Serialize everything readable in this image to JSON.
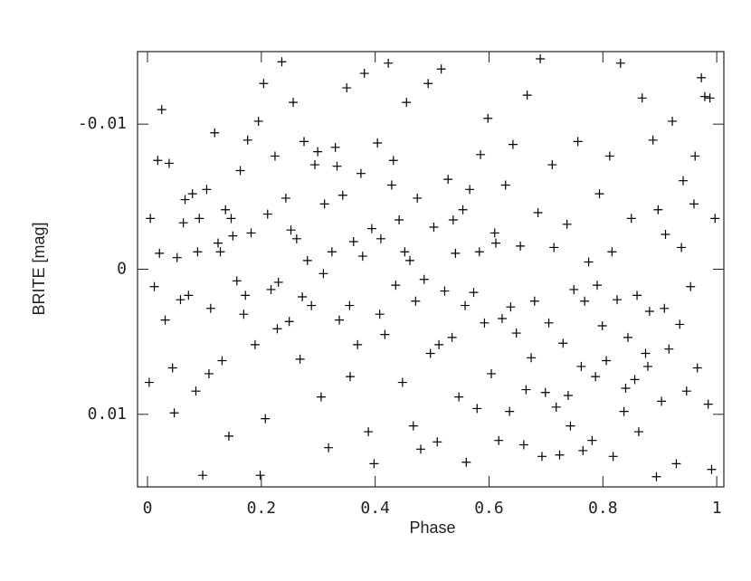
{
  "chart_data": {
    "type": "scatter",
    "xlabel": "Phase",
    "ylabel": "BRITE [mag]",
    "xlim": [
      -0.0175,
      1.0125
    ],
    "ylim": [
      0.015,
      -0.015
    ],
    "xticks": [
      0,
      0.2,
      0.4,
      0.6,
      0.8,
      1
    ],
    "yticks": [
      -0.01,
      0,
      0.01
    ],
    "color": "#000000",
    "marker": "+",
    "x": [
      0.005,
      0.012,
      0.018,
      0.025,
      0.031,
      0.038,
      0.044,
      0.052,
      0.058,
      0.066,
      0.072,
      0.079,
      0.085,
      0.091,
      0.097,
      0.003,
      0.021,
      0.047,
      0.063,
      0.088,
      0.104,
      0.111,
      0.118,
      0.124,
      0.131,
      0.137,
      0.143,
      0.15,
      0.157,
      0.163,
      0.169,
      0.176,
      0.182,
      0.189,
      0.195,
      0.108,
      0.128,
      0.147,
      0.172,
      0.198,
      0.204,
      0.211,
      0.217,
      0.224,
      0.23,
      0.236,
      0.243,
      0.249,
      0.256,
      0.262,
      0.268,
      0.275,
      0.281,
      0.288,
      0.294,
      0.207,
      0.228,
      0.252,
      0.272,
      0.299,
      0.305,
      0.311,
      0.318,
      0.324,
      0.33,
      0.337,
      0.343,
      0.35,
      0.356,
      0.362,
      0.369,
      0.375,
      0.381,
      0.388,
      0.394,
      0.309,
      0.333,
      0.355,
      0.378,
      0.398,
      0.404,
      0.41,
      0.417,
      0.423,
      0.429,
      0.436,
      0.442,
      0.448,
      0.455,
      0.461,
      0.467,
      0.474,
      0.48,
      0.486,
      0.493,
      0.408,
      0.432,
      0.452,
      0.471,
      0.497,
      0.503,
      0.509,
      0.516,
      0.522,
      0.528,
      0.535,
      0.541,
      0.547,
      0.554,
      0.56,
      0.566,
      0.573,
      0.579,
      0.585,
      0.592,
      0.598,
      0.512,
      0.537,
      0.558,
      0.583,
      0.604,
      0.61,
      0.617,
      0.623,
      0.629,
      0.636,
      0.642,
      0.648,
      0.655,
      0.661,
      0.667,
      0.674,
      0.68,
      0.686,
      0.693,
      0.699,
      0.612,
      0.638,
      0.665,
      0.69,
      0.705,
      0.711,
      0.718,
      0.724,
      0.73,
      0.737,
      0.743,
      0.749,
      0.756,
      0.762,
      0.768,
      0.775,
      0.781,
      0.787,
      0.794,
      0.799,
      0.714,
      0.739,
      0.765,
      0.79,
      0.806,
      0.812,
      0.818,
      0.825,
      0.831,
      0.837,
      0.844,
      0.85,
      0.856,
      0.863,
      0.869,
      0.875,
      0.882,
      0.888,
      0.894,
      0.816,
      0.84,
      0.86,
      0.879,
      0.897,
      0.903,
      0.91,
      0.916,
      0.922,
      0.929,
      0.935,
      0.941,
      0.947,
      0.954,
      0.96,
      0.966,
      0.973,
      0.979,
      0.985,
      0.991,
      0.997,
      0.908,
      0.938,
      0.962,
      0.988
    ],
    "y": [
      -0.0035,
      0.0012,
      -0.0075,
      -0.011,
      0.0035,
      -0.0073,
      0.0068,
      -0.0008,
      0.0021,
      -0.0048,
      0.0018,
      -0.0052,
      0.0084,
      -0.0035,
      0.0142,
      0.0078,
      -0.0011,
      0.0099,
      -0.0032,
      -0.0012,
      -0.0055,
      0.0027,
      -0.0094,
      -0.0018,
      0.0063,
      -0.0041,
      0.0115,
      -0.0023,
      0.0008,
      -0.0068,
      0.0031,
      -0.0089,
      -0.0025,
      0.0052,
      -0.0102,
      0.0072,
      -0.0012,
      -0.0035,
      0.0018,
      0.0142,
      -0.0128,
      -0.0038,
      0.0014,
      -0.0078,
      0.0009,
      -0.0143,
      -0.0049,
      0.0036,
      -0.0115,
      -0.0021,
      0.0062,
      -0.0088,
      -0.0006,
      0.0025,
      -0.0072,
      0.0103,
      0.0041,
      -0.0027,
      0.0019,
      -0.0081,
      0.0088,
      -0.0045,
      0.0123,
      -0.0012,
      -0.0084,
      0.0035,
      -0.0051,
      -0.0125,
      0.0074,
      -0.0019,
      0.0052,
      -0.0066,
      -0.0135,
      0.0112,
      -0.0028,
      0.0003,
      -0.0071,
      0.0025,
      -0.0009,
      0.0134,
      -0.0087,
      -0.0021,
      0.0045,
      -0.0142,
      -0.0058,
      0.0011,
      -0.0034,
      0.0078,
      -0.0115,
      -0.0006,
      0.0108,
      -0.0049,
      0.0124,
      0.0007,
      -0.0128,
      0.0031,
      -0.0075,
      -0.0012,
      0.0022,
      0.0058,
      -0.0029,
      0.0119,
      -0.0138,
      0.0015,
      -0.0062,
      0.0047,
      -0.0011,
      0.0088,
      -0.0041,
      0.0133,
      -0.0055,
      0.0016,
      0.0096,
      -0.0079,
      0.0037,
      -0.0104,
      0.0052,
      -0.0034,
      0.0025,
      -0.0012,
      0.0072,
      -0.0025,
      0.0118,
      0.0034,
      -0.0058,
      0.0098,
      -0.0086,
      0.0044,
      -0.0016,
      0.0121,
      -0.012,
      0.0061,
      0.0022,
      -0.0039,
      0.0129,
      0.0085,
      -0.0018,
      0.0026,
      0.0083,
      -0.0145,
      0.0037,
      -0.0072,
      0.0095,
      0.0128,
      0.0051,
      -0.0031,
      0.0108,
      0.0014,
      -0.0088,
      0.0067,
      0.0022,
      -0.0005,
      0.0118,
      0.0074,
      -0.0052,
      0.0039,
      -0.0015,
      0.0087,
      0.0125,
      0.0011,
      0.0063,
      -0.0078,
      0.0129,
      0.0021,
      -0.0142,
      0.0098,
      0.0047,
      -0.0035,
      0.0076,
      0.0112,
      -0.0118,
      0.0058,
      0.0029,
      -0.0089,
      0.0143,
      -0.0012,
      0.0082,
      0.0018,
      0.0067,
      -0.0041,
      0.0091,
      -0.0024,
      0.0055,
      -0.0102,
      0.0134,
      0.0038,
      -0.0061,
      0.0084,
      0.0012,
      -0.0045,
      0.0068,
      -0.0132,
      -0.0119,
      0.0093,
      0.0138,
      -0.0035,
      0.0027,
      -0.0015,
      -0.0078,
      -0.0118
    ]
  }
}
